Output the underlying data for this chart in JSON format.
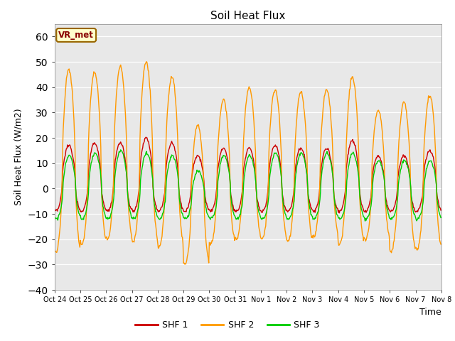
{
  "title": "Soil Heat Flux",
  "ylabel": "Soil Heat Flux (W/m2)",
  "xlabel": "Time",
  "ylim": [
    -40,
    65
  ],
  "yticks": [
    -40,
    -30,
    -20,
    -10,
    0,
    10,
    20,
    30,
    40,
    50,
    60
  ],
  "colors": {
    "SHF 1": "#cc0000",
    "SHF 2": "#ff9900",
    "SHF 3": "#00cc00"
  },
  "bg_color": "#e8e8e8",
  "fig_bg": "#ffffff",
  "legend_label": "VR_met",
  "xtick_labels": [
    "Oct 24",
    "Oct 25",
    "Oct 26",
    "Oct 27",
    "Oct 28",
    "Oct 29",
    "Oct 30",
    "Oct 31",
    "Nov 1",
    "Nov 2",
    "Nov 3",
    "Nov 4",
    "Nov 5",
    "Nov 6",
    "Nov 7",
    "Nov 8"
  ],
  "line_width": 1.0
}
